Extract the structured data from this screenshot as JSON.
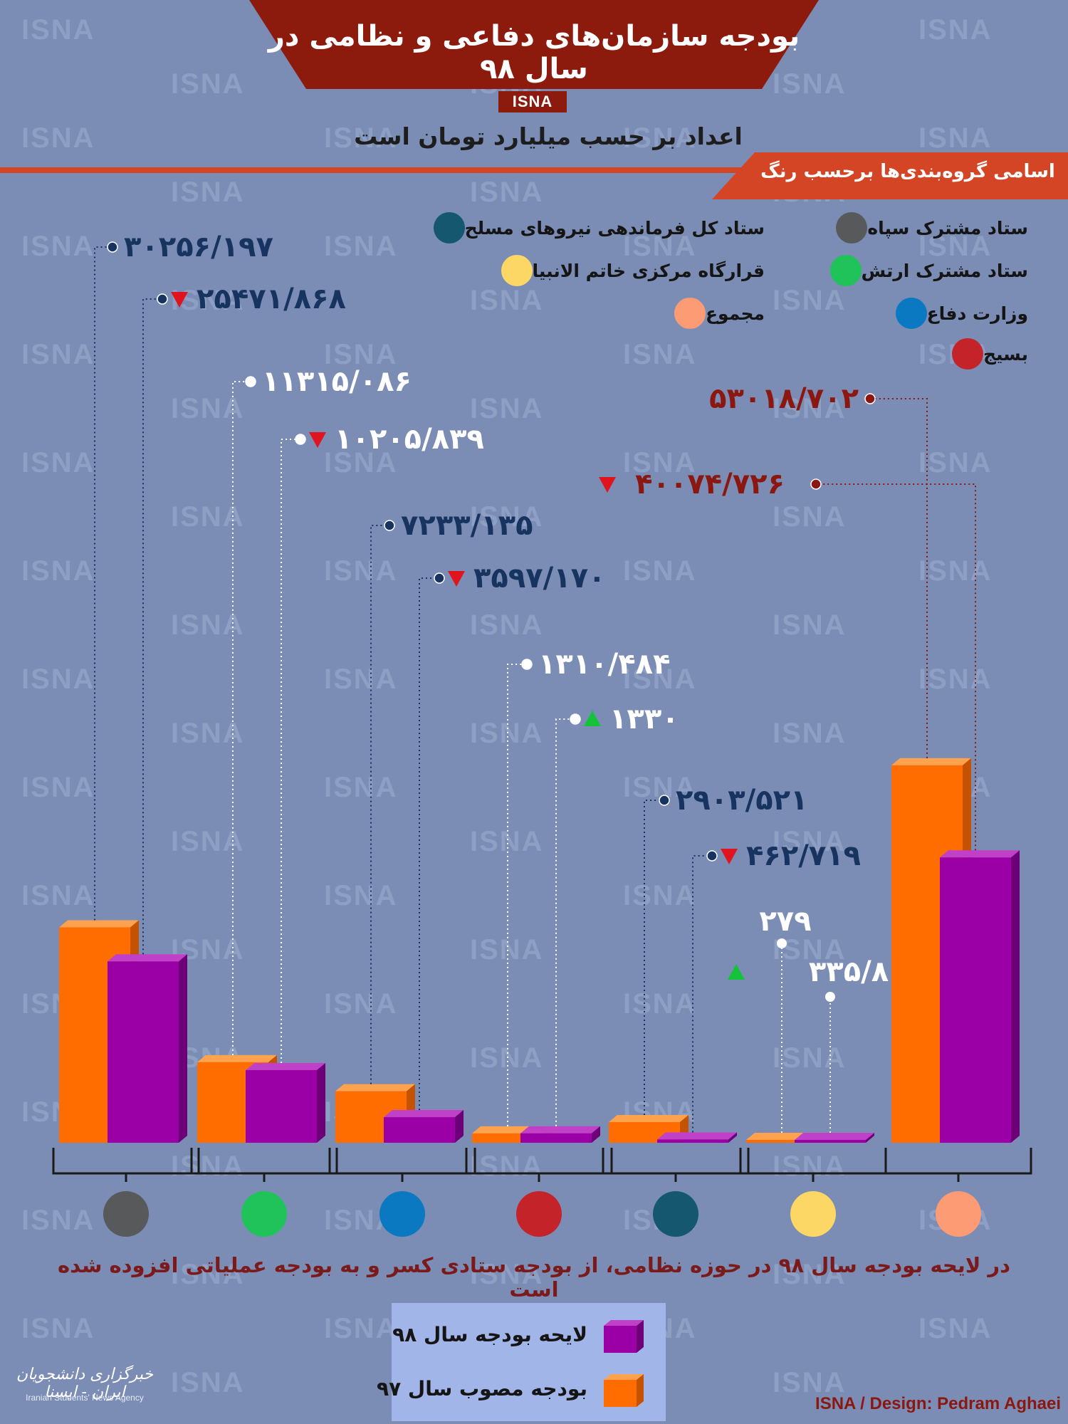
{
  "watermark": "ISNA",
  "header": {
    "title": "بودجه سازمان‌های دفاعی و نظامی در سال ۹۸",
    "agency_tab": "ISNA",
    "subtitle": "اعداد بر حسب میلیارد تومان است"
  },
  "legend": {
    "title": "اسامی گروه‌بندی‌ها برحسب رنگ",
    "items": [
      {
        "label": "ستاد مشترک سپاه",
        "color": "#58595b"
      },
      {
        "label": "ستاد مشترک ارتش",
        "color": "#1fc35a"
      },
      {
        "label": "وزارت دفاع",
        "color": "#0b79c1"
      },
      {
        "label": "بسیج",
        "color": "#c4232a"
      },
      {
        "label": "ستاد کل فرماندهی نیروهای مسلح",
        "color": "#14576f"
      },
      {
        "label": "قرارگاه مرکزی خاتم الانبیا",
        "color": "#fdd766"
      },
      {
        "label": "مجموع",
        "color": "#fc9b74"
      }
    ]
  },
  "chart_data": {
    "type": "bar",
    "categories": [
      "ستاد مشترک سپاه",
      "ستاد مشترک ارتش",
      "وزارت دفاع",
      "بسیج",
      "ستاد کل فرماندهی نیروهای مسلح",
      "قرارگاه مرکزی خاتم الانبیا",
      "مجموع"
    ],
    "category_colors": [
      "#58595b",
      "#1fc35a",
      "#0b79c1",
      "#c4232a",
      "#14576f",
      "#fdd766",
      "#fc9b74"
    ],
    "series": [
      {
        "name": "بودجه مصوب سال ۹۷",
        "color": "#ff6c00",
        "values": [
          30256.197,
          11315.086,
          7233.135,
          1310.484,
          2903.521,
          279,
          53018.702
        ],
        "labels": [
          "۳۰۲۵۶/۱۹۷",
          "۱۱۳۱۵/۰۸۶",
          "۷۲۳۳/۱۳۵",
          "۱۳۱۰/۴۸۴",
          "۲۹۰۳/۵۲۱",
          "۲۷۹",
          "۵۳۰۱۸/۷۰۲"
        ]
      },
      {
        "name": "لایحه بودجه سال ۹۸",
        "color": "#9b00a6",
        "values": [
          25471.868,
          10205.839,
          3597.17,
          1330,
          462.719,
          335.8,
          40074.726
        ],
        "labels": [
          "۲۵۴۷۱/۸۶۸",
          "۱۰۲۰۵/۸۳۹",
          "۳۵۹۷/۱۷۰",
          "۱۳۳۰",
          "۴۶۲/۷۱۹",
          "۳۳۵/۸",
          "۴۰۰۷۴/۷۲۶"
        ],
        "change": [
          "down",
          "down",
          "down",
          "up",
          "down",
          "up",
          "down"
        ]
      }
    ],
    "unit": "میلیارد تومان",
    "legend_position": "bottom-center"
  },
  "note": "در لایحه بودجه سال ۹۸ در حوزه نظامی، از بودجه ستادی کسر و به بودجه عملیاتی افزوده شده است",
  "key": {
    "row98": "لایحه بودجه سال ۹۸",
    "row97": "بودجه مصوب سال ۹۷"
  },
  "logo": {
    "persian": "خبرگزاری دانشجویان ایران - ایسنا",
    "english": "Iranian Students' News Agency"
  },
  "credit": "ISNA / Design: Pedram Aghaei"
}
